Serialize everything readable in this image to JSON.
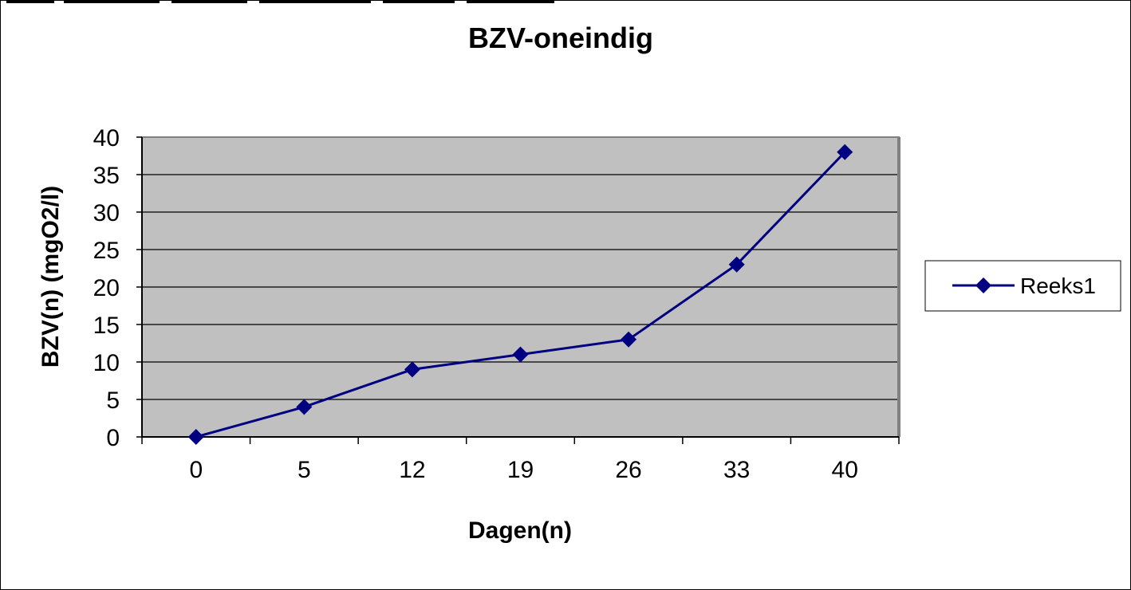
{
  "chart_data": {
    "type": "line",
    "title": "BZV-oneindig",
    "xlabel": "Dagen(n)",
    "ylabel": "BZV(n) (mgO2/l)",
    "categories": [
      "0",
      "5",
      "12",
      "19",
      "26",
      "33",
      "40"
    ],
    "series": [
      {
        "name": "Reeks1",
        "values": [
          0,
          4,
          9,
          11,
          13,
          23,
          38
        ],
        "color": "#000080",
        "marker": "diamond"
      }
    ],
    "ylim": [
      0,
      40
    ],
    "yticks": [
      0,
      5,
      10,
      15,
      20,
      25,
      30,
      35,
      40
    ],
    "grid": "horizontal",
    "plot_background": "#c0c0c0",
    "legend_placement": "right"
  }
}
